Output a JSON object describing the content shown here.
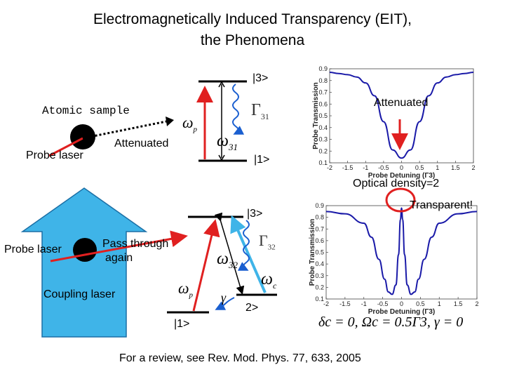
{
  "title_line1": "Electromagnetically Induced Transparency (EIT),",
  "title_line2": "the Phenomena",
  "top": {
    "atomic_sample": "Atomic sample",
    "probe_laser": "Probe laser",
    "attenuated_beam": "Attenuated",
    "level3": "|3>",
    "level1": "|1>",
    "omega_p": "ω",
    "omega_p_sub": "p",
    "omega_31": "ω",
    "omega_31_sub": "31",
    "gamma_31": "Γ",
    "gamma_31_sub": "31",
    "plot_annotation": "Attenuated",
    "optical_density": "Optical density=2"
  },
  "bottom": {
    "probe_laser": "Probe laser",
    "pass_through_1": "Pass through",
    "pass_through_2": "again",
    "coupling_laser": "Coupling laser",
    "level3": "|3>",
    "level2": "2>",
    "level1": "|1>",
    "omega_32": "ω",
    "omega_32_sub": "32",
    "gamma_32": "Γ",
    "gamma_32_sub": "32",
    "omega_c": "ω",
    "omega_c_sub": "c",
    "omega_p": "ω",
    "omega_p_sub": "p",
    "gamma_small": "γ",
    "plot_annotation": "Transparent!",
    "params": "δc = 0, Ωc = 0.5Γ3, γ = 0"
  },
  "footer": "For a review, see Rev. Mod. Phys. 77, 633, 2005",
  "colors": {
    "curve": "#1a1aa8",
    "probe_beam": "#e02020",
    "coupling_arrow": "#3fb4e8",
    "level_line": "#000000",
    "decay": "#1a5fd0",
    "highlight_circle": "#e02020"
  },
  "chart_data": [
    {
      "type": "line",
      "title": "",
      "xlabel": "Probe Detuning (Γ3)",
      "ylabel": "Probe Transmission",
      "xlim": [
        -2,
        2
      ],
      "ylim": [
        0.1,
        0.9
      ],
      "xticks": [
        "-2",
        "-1.5",
        "-1",
        "-0.5",
        "0",
        "0.5",
        "1",
        "1.5",
        "2"
      ],
      "yticks": [
        "0.1",
        "0.2",
        "0.3",
        "0.4",
        "0.5",
        "0.6",
        "0.7",
        "0.8",
        "0.9"
      ],
      "series": [
        {
          "x": [
            -2,
            -1.75,
            -1.5,
            -1.25,
            -1,
            -0.75,
            -0.5,
            -0.25,
            0,
            0.25,
            0.5,
            0.75,
            1,
            1.25,
            1.5,
            1.75,
            2
          ],
          "y": [
            0.87,
            0.86,
            0.85,
            0.83,
            0.78,
            0.67,
            0.45,
            0.21,
            0.14,
            0.21,
            0.45,
            0.67,
            0.78,
            0.83,
            0.85,
            0.86,
            0.87
          ]
        }
      ]
    },
    {
      "type": "line",
      "title": "",
      "xlabel": "Probe Detuning (Γ3)",
      "ylabel": "Probe Transmission",
      "xlim": [
        -2,
        2
      ],
      "ylim": [
        0.1,
        0.9
      ],
      "xticks": [
        "-2",
        "-1.5",
        "-1",
        "-0.5",
        "0",
        "0.5",
        "1",
        "1.5",
        "2"
      ],
      "yticks": [
        "0.1",
        "0.2",
        "0.3",
        "0.4",
        "0.5",
        "0.6",
        "0.7",
        "0.8",
        "0.9"
      ],
      "series": [
        {
          "x": [
            -2,
            -1.5,
            -1,
            -0.8,
            -0.6,
            -0.45,
            -0.35,
            -0.25,
            -0.15,
            -0.08,
            -0.03,
            0,
            0.03,
            0.08,
            0.15,
            0.25,
            0.35,
            0.45,
            0.6,
            0.8,
            1,
            1.5,
            2
          ],
          "y": [
            0.85,
            0.83,
            0.75,
            0.63,
            0.44,
            0.27,
            0.16,
            0.14,
            0.22,
            0.48,
            0.78,
            0.88,
            0.78,
            0.48,
            0.22,
            0.14,
            0.16,
            0.27,
            0.44,
            0.63,
            0.75,
            0.83,
            0.85
          ]
        }
      ]
    }
  ]
}
